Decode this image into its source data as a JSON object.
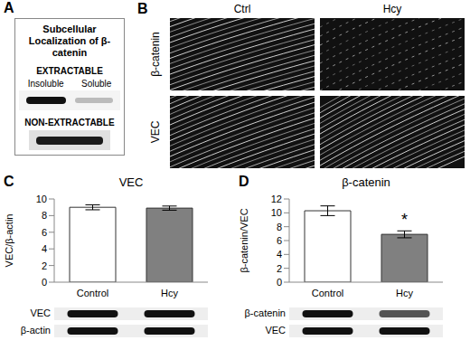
{
  "panel_A": {
    "letter": "A",
    "title": "Subcellular Localization of β-catenin",
    "extractable": {
      "heading": "EXTRACTABLE",
      "lanes": [
        "Insoluble",
        "Soluble"
      ]
    },
    "non_extractable": {
      "heading": "NON-EXTRACTABLE"
    }
  },
  "panel_B": {
    "letter": "B",
    "columns": [
      "Ctrl",
      "Hcy"
    ],
    "rows": [
      "β-catenin",
      "VEC"
    ]
  },
  "chart_data": [
    {
      "type": "bar",
      "letter": "C",
      "title": "VEC",
      "y_label": "VEC/β-actin",
      "categories": [
        "Control",
        "Hcy"
      ],
      "values": [
        9.0,
        8.9
      ],
      "errors": [
        0.3,
        0.25
      ],
      "colors": [
        "#ffffff",
        "#808080"
      ],
      "ylim": [
        0,
        10
      ],
      "yticks": [
        0,
        2,
        4,
        6,
        8,
        10
      ],
      "blot_labels": [
        "VEC",
        "β-actin"
      ]
    },
    {
      "type": "bar",
      "letter": "D",
      "title": "β-catenin",
      "y_label": "β-catenin/VEC",
      "categories": [
        "Control",
        "Hcy"
      ],
      "values": [
        10.3,
        6.9
      ],
      "errors": [
        0.7,
        0.5
      ],
      "colors": [
        "#ffffff",
        "#808080"
      ],
      "ylim": [
        0,
        12
      ],
      "yticks": [
        0,
        2,
        4,
        6,
        8,
        10,
        12
      ],
      "annotations": [
        {
          "category": "Hcy",
          "text": "*"
        }
      ],
      "blot_labels": [
        "β-catenin",
        "VEC"
      ]
    }
  ]
}
